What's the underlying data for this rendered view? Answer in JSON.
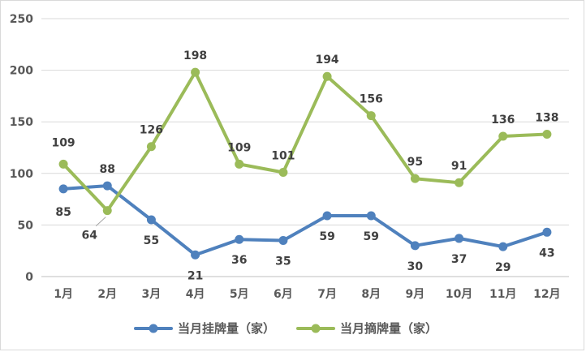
{
  "chart_data": {
    "type": "line",
    "categories": [
      "1月",
      "2月",
      "3月",
      "4月",
      "5月",
      "6月",
      "7月",
      "8月",
      "9月",
      "10月",
      "11月",
      "12月"
    ],
    "series": [
      {
        "name": "当月挂牌量（家）",
        "color": "#4f81bd",
        "values": [
          85,
          88,
          55,
          21,
          36,
          35,
          59,
          59,
          30,
          37,
          29,
          43
        ]
      },
      {
        "name": "当月摘牌量（家）",
        "color": "#9bbb59",
        "values": [
          109,
          64,
          126,
          198,
          109,
          101,
          194,
          156,
          95,
          91,
          136,
          138
        ]
      }
    ],
    "yticks": [
      "0",
      "50",
      "100",
      "150",
      "200",
      "250"
    ],
    "ylim": [
      0,
      250
    ],
    "grid": true,
    "legend": "bottom"
  }
}
